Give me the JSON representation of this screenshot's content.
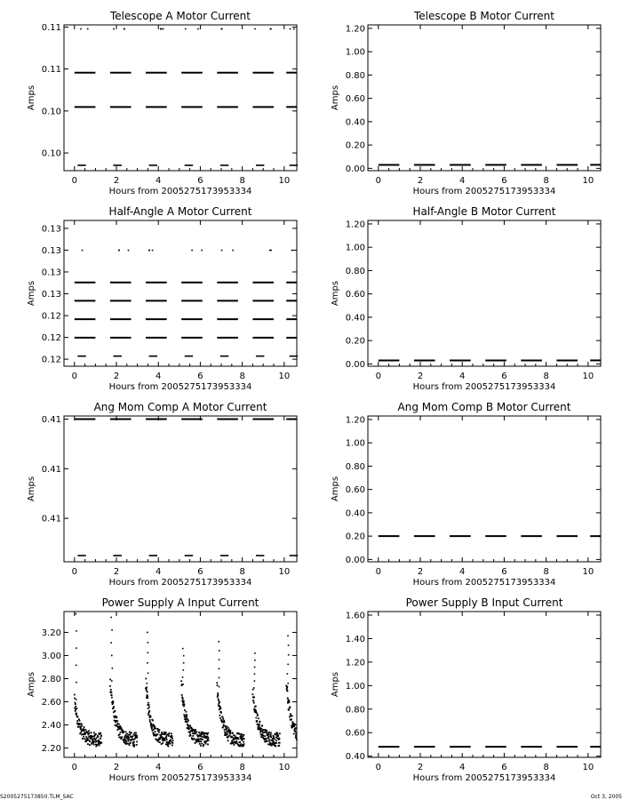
{
  "footer": {
    "left": "S2005275173850.TLM_SAC",
    "right": "Oct  3, 2005"
  },
  "chart_data": [
    {
      "type": "scatter",
      "title": "Telescope A Motor Current",
      "xlabel": "Hours from 2005275173953334",
      "ylabel": "Amps",
      "xlim": [
        -0.5,
        10.6
      ],
      "xticks": [
        0,
        2,
        4,
        6,
        8,
        10
      ],
      "yticks": [
        {
          "v": 0.09858,
          "label": "0.10"
        },
        {
          "v": 0.10391,
          "label": "0.10"
        },
        {
          "v": 0.10924,
          "label": "0.11"
        },
        {
          "v": 0.11456,
          "label": "0.11"
        }
      ],
      "ylim": [
        0.09633,
        0.11484
      ],
      "levels": [
        {
          "y": 0.09701,
          "mode": "sparse"
        },
        {
          "y": 0.10442,
          "mode": "dense"
        },
        {
          "y": 0.10878,
          "mode": "dense"
        },
        {
          "y": 0.11433,
          "mode": "outlier"
        }
      ]
    },
    {
      "type": "scatter",
      "title": "Telescope B Motor Current",
      "xlabel": "Hours from 2005275173953334",
      "ylabel": "Amps",
      "xlim": [
        -0.5,
        10.6
      ],
      "xticks": [
        0,
        2,
        4,
        6,
        8,
        10
      ],
      "yticks": [
        {
          "v": 0,
          "label": "0.00"
        },
        {
          "v": 0.2,
          "label": "0.20"
        },
        {
          "v": 0.4,
          "label": "0.40"
        },
        {
          "v": 0.6,
          "label": "0.60"
        },
        {
          "v": 0.8,
          "label": "0.80"
        },
        {
          "v": 1.0,
          "label": "1.00"
        },
        {
          "v": 1.2,
          "label": "1.20"
        }
      ],
      "ylim": [
        -0.02,
        1.23
      ],
      "levels": [
        {
          "y": 0.03,
          "mode": "dense"
        }
      ]
    },
    {
      "type": "scatter",
      "title": "Half-Angle A Motor Current",
      "xlabel": "Hours from 2005275173953334",
      "ylabel": "Amps",
      "xlim": [
        -0.5,
        10.6
      ],
      "xticks": [
        0,
        2,
        4,
        6,
        8,
        10
      ],
      "yticks": [
        {
          "v": 0.11804,
          "label": "0.12"
        },
        {
          "v": 0.12041,
          "label": "0.12"
        },
        {
          "v": 0.12278,
          "label": "0.12"
        },
        {
          "v": 0.12516,
          "label": "0.13"
        },
        {
          "v": 0.12753,
          "label": "0.13"
        },
        {
          "v": 0.1299,
          "label": "0.13"
        },
        {
          "v": 0.13227,
          "label": "0.13"
        }
      ],
      "ylim": [
        0.11728,
        0.13313
      ],
      "levels": [
        {
          "y": 0.11838,
          "mode": "sparse"
        },
        {
          "y": 0.12038,
          "mode": "dense"
        },
        {
          "y": 0.12239,
          "mode": "dense"
        },
        {
          "y": 0.1244,
          "mode": "dense"
        },
        {
          "y": 0.12639,
          "mode": "dense"
        },
        {
          "y": 0.12989,
          "mode": "outlier"
        }
      ]
    },
    {
      "type": "scatter",
      "title": "Half-Angle B Motor Current",
      "xlabel": "Hours from 2005275173953334",
      "ylabel": "Amps",
      "xlim": [
        -0.5,
        10.6
      ],
      "xticks": [
        0,
        2,
        4,
        6,
        8,
        10
      ],
      "yticks": [
        {
          "v": 0,
          "label": "0.00"
        },
        {
          "v": 0.2,
          "label": "0.20"
        },
        {
          "v": 0.4,
          "label": "0.40"
        },
        {
          "v": 0.6,
          "label": "0.60"
        },
        {
          "v": 0.8,
          "label": "0.80"
        },
        {
          "v": 1.0,
          "label": "1.00"
        },
        {
          "v": 1.2,
          "label": "1.20"
        }
      ],
      "ylim": [
        -0.02,
        1.23
      ],
      "levels": [
        {
          "y": 0.03,
          "mode": "dense"
        }
      ]
    },
    {
      "type": "scatter",
      "title": "Ang Mom Comp A Motor Current",
      "xlabel": "Hours from 2005275173953334",
      "ylabel": "Amps",
      "xlim": [
        -0.5,
        10.6
      ],
      "xticks": [
        0,
        2,
        4,
        6,
        8,
        10
      ],
      "yticks": [
        {
          "v": 0.4092,
          "label": "0.41"
        },
        {
          "v": 0.4124,
          "label": "0.41"
        },
        {
          "v": 0.4156,
          "label": "0.41"
        }
      ],
      "ylim": [
        0.4064,
        0.4158
      ],
      "levels": [
        {
          "y": 0.4068,
          "mode": "sparse"
        },
        {
          "y": 0.4156,
          "mode": "dense"
        }
      ]
    },
    {
      "type": "scatter",
      "title": "Ang Mom Comp B Motor Current",
      "xlabel": "Hours from 2005275173953334",
      "ylabel": "Amps",
      "xlim": [
        -0.5,
        10.6
      ],
      "xticks": [
        0,
        2,
        4,
        6,
        8,
        10
      ],
      "yticks": [
        {
          "v": 0,
          "label": "0.00"
        },
        {
          "v": 0.2,
          "label": "0.20"
        },
        {
          "v": 0.4,
          "label": "0.40"
        },
        {
          "v": 0.6,
          "label": "0.60"
        },
        {
          "v": 0.8,
          "label": "0.80"
        },
        {
          "v": 1.0,
          "label": "1.00"
        },
        {
          "v": 1.2,
          "label": "1.20"
        }
      ],
      "ylim": [
        -0.02,
        1.23
      ],
      "levels": [
        {
          "y": 0.2,
          "mode": "dense"
        }
      ]
    },
    {
      "type": "scatter",
      "title": "Power Supply A Input Current",
      "xlabel": "Hours from 2005275173953334",
      "ylabel": "Amps",
      "xlim": [
        -0.5,
        10.6
      ],
      "xticks": [
        0,
        2,
        4,
        6,
        8,
        10
      ],
      "yticks": [
        {
          "v": 2.2,
          "label": "2.20"
        },
        {
          "v": 2.4,
          "label": "2.40"
        },
        {
          "v": 2.6,
          "label": "2.60"
        },
        {
          "v": 2.8,
          "label": "2.80"
        },
        {
          "v": 3.0,
          "label": "3.00"
        },
        {
          "v": 3.2,
          "label": "3.20"
        }
      ],
      "ylim": [
        2.12,
        3.38
      ],
      "cycles": [
        {
          "start": 0.0,
          "peak": 2.62,
          "spike": 3.36
        },
        {
          "start": 1.7,
          "peak": 2.78,
          "spike": 3.33
        },
        {
          "start": 3.4,
          "peak": 2.76,
          "spike": 3.2
        },
        {
          "start": 5.1,
          "peak": 2.75,
          "spike": 3.06
        },
        {
          "start": 6.8,
          "peak": 2.73,
          "spike": 3.12
        },
        {
          "start": 8.5,
          "peak": 2.72,
          "spike": 3.02
        },
        {
          "start": 10.1,
          "peak": 2.76,
          "spike": 3.17
        }
      ]
    },
    {
      "type": "scatter",
      "title": "Power Supply B Input Current",
      "xlabel": "Hours from 2005275173953334",
      "ylabel": "Amps",
      "xlim": [
        -0.5,
        10.6
      ],
      "xticks": [
        0,
        2,
        4,
        6,
        8,
        10
      ],
      "yticks": [
        {
          "v": 0.4,
          "label": "0.40"
        },
        {
          "v": 0.6,
          "label": "0.60"
        },
        {
          "v": 0.8,
          "label": "0.80"
        },
        {
          "v": 1.0,
          "label": "1.00"
        },
        {
          "v": 1.2,
          "label": "1.20"
        },
        {
          "v": 1.4,
          "label": "1.40"
        },
        {
          "v": 1.6,
          "label": "1.60"
        }
      ],
      "ylim": [
        0.39,
        1.63
      ],
      "levels": [
        {
          "y": 0.48,
          "mode": "dense"
        }
      ]
    }
  ]
}
